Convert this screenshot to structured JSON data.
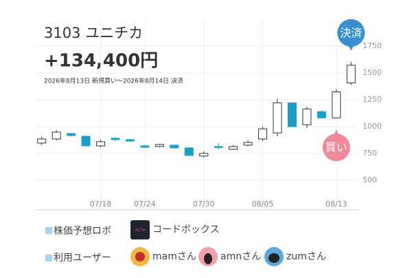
{
  "header": {
    "title": "3103 ユニチカ",
    "profit": "+134,400円",
    "period": "2026年8月13日 新規買い〜2026年8月14日 決済"
  },
  "chart_data": {
    "type": "candlestick",
    "categories": [
      null,
      null,
      null,
      null,
      "07/18",
      null,
      null,
      "07/24",
      null,
      null,
      null,
      "07/30",
      null,
      null,
      null,
      "08/05",
      null,
      null,
      null,
      null,
      "08/13",
      null
    ],
    "open": [
      847,
      885,
      936,
      910,
      821,
      892,
      879,
      821,
      815,
      828,
      802,
      726,
      815,
      789,
      828,
      885,
      942,
      1222,
      1018,
      1140,
      1082,
      1407
    ],
    "close": [
      885,
      949,
      917,
      821,
      860,
      879,
      866,
      808,
      834,
      802,
      732,
      751,
      808,
      815,
      853,
      980,
      1222,
      1000,
      1165,
      1082,
      1324,
      1572
    ],
    "high": [
      904,
      968,
      940,
      916,
      879,
      904,
      885,
      828,
      840,
      834,
      808,
      770,
      847,
      828,
      872,
      1000,
      1260,
      1222,
      1184,
      1152,
      1350,
      1604
    ],
    "low": [
      828,
      872,
      910,
      815,
      808,
      866,
      860,
      802,
      808,
      796,
      726,
      713,
      789,
      783,
      815,
      866,
      910,
      1000,
      987,
      1076,
      1076,
      1388
    ],
    "ylim": [
      225,
      2000
    ],
    "yticks": [
      500,
      750,
      1000,
      1250,
      1500,
      1750
    ],
    "grid": true,
    "up_color": "#ffffff",
    "down_color": "#1a9fc9",
    "annotations": [
      {
        "text": "決済",
        "index": 21,
        "color": "#3a8fd0"
      },
      {
        "text": "買い",
        "index": 20,
        "color": "#f08a9a"
      }
    ]
  },
  "footer": {
    "robot_label": "株価予想ロボ",
    "robot_name": "コードボックス",
    "users_label": "利用ユーザー",
    "users": [
      "mamさん",
      "amnさん",
      "zumさん"
    ]
  }
}
